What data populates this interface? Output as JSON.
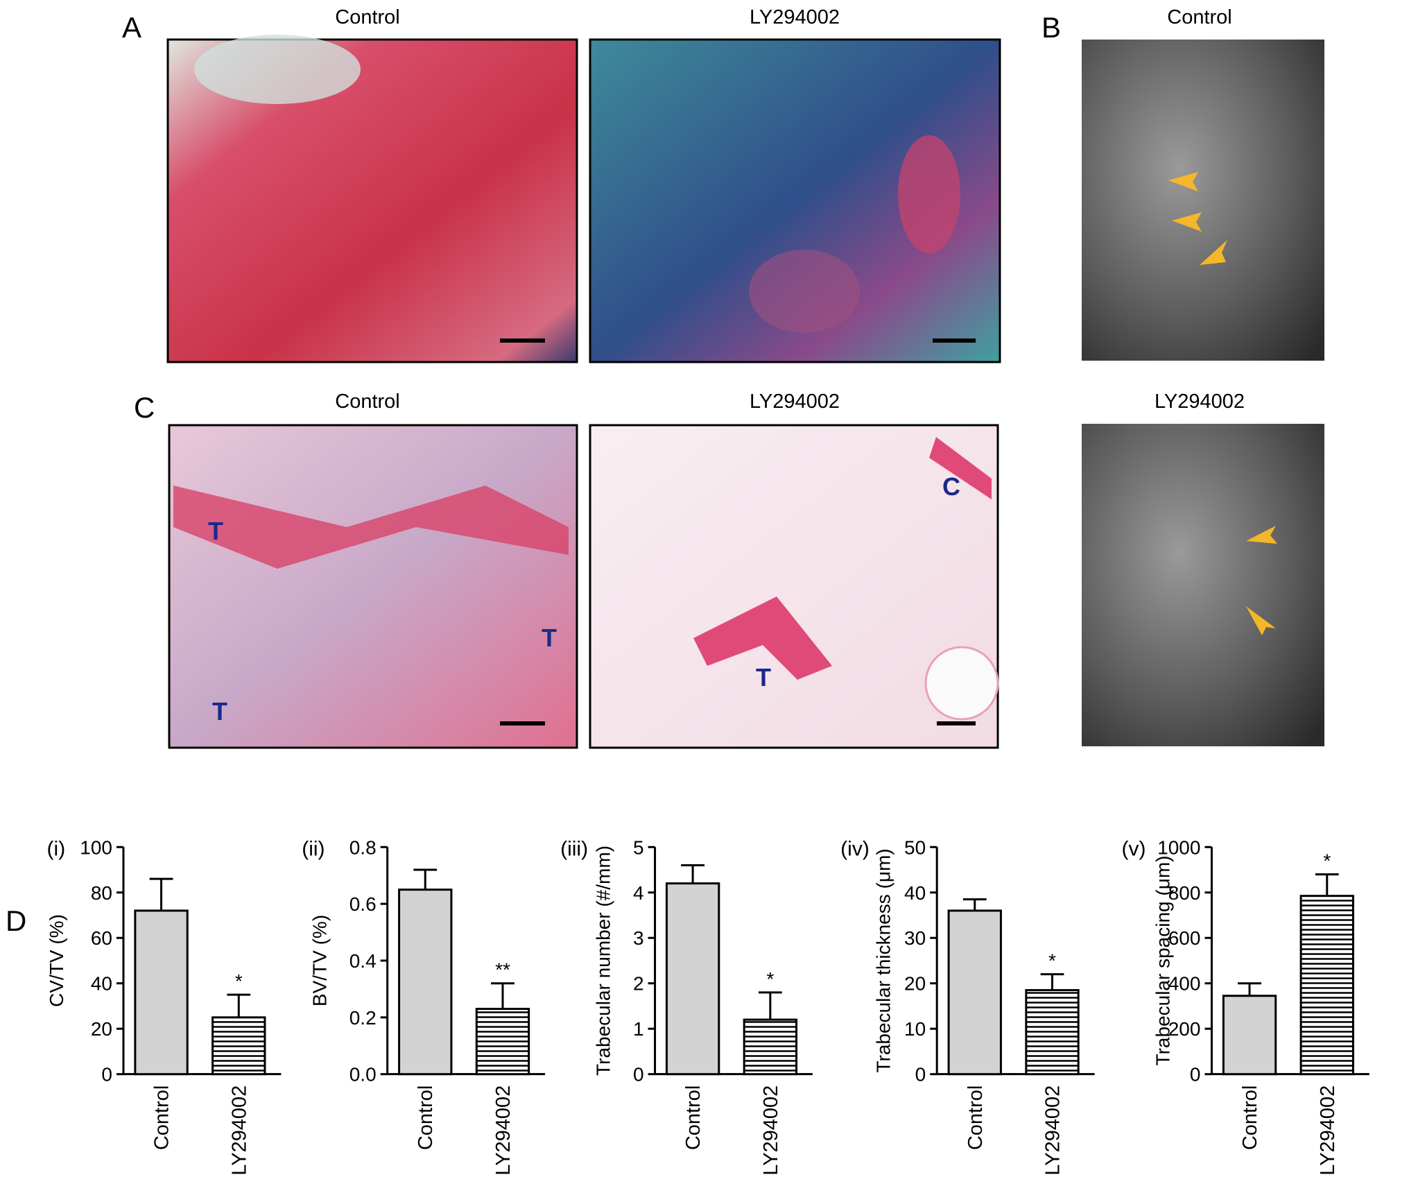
{
  "figure": {
    "A": {
      "label": "A",
      "left_title": "Control",
      "right_title": "LY294002"
    },
    "B": {
      "label": "B",
      "top_title": "Control",
      "bottom_title": "LY294002"
    },
    "C": {
      "label": "C",
      "left_title": "Control",
      "right_title": "LY294002",
      "left_marks": [
        "T",
        "T",
        "T"
      ],
      "right_marks": [
        "C",
        "T"
      ]
    },
    "D": {
      "label": "D"
    }
  },
  "chart_data": [
    {
      "type": "bar",
      "panel_label": "(i)",
      "ylabel": "CV/TV (%)",
      "categories": [
        "Control",
        "LY294002"
      ],
      "values": [
        72,
        25
      ],
      "errors": [
        14,
        10
      ],
      "significance": [
        null,
        "*"
      ],
      "colors": [
        "#d3d3d3",
        "#ffffff"
      ],
      "hatch": [
        false,
        true
      ],
      "ylim": [
        0,
        100
      ],
      "yticks": [
        0,
        20,
        40,
        60,
        80,
        100
      ]
    },
    {
      "type": "bar",
      "panel_label": "(ii)",
      "ylabel": "BV/TV (%)",
      "categories": [
        "Control",
        "LY294002"
      ],
      "values": [
        0.65,
        0.23
      ],
      "errors": [
        0.07,
        0.09
      ],
      "significance": [
        null,
        "**"
      ],
      "colors": [
        "#d3d3d3",
        "#ffffff"
      ],
      "hatch": [
        false,
        true
      ],
      "ylim": [
        0,
        0.8
      ],
      "yticks": [
        {
          "value": 0,
          "label": "0.0"
        },
        0.2,
        0.4,
        0.6,
        0.8
      ]
    },
    {
      "type": "bar",
      "panel_label": "(iii)",
      "ylabel": "Trabecular number (#/mm)",
      "categories": [
        "Control",
        "LY294002"
      ],
      "values": [
        4.2,
        1.2
      ],
      "errors": [
        0.4,
        0.6
      ],
      "significance": [
        null,
        "*"
      ],
      "colors": [
        "#d3d3d3",
        "#ffffff"
      ],
      "hatch": [
        false,
        true
      ],
      "ylim": [
        0,
        5
      ],
      "yticks": [
        0,
        1,
        2,
        3,
        4,
        5
      ]
    },
    {
      "type": "bar",
      "panel_label": "(iv)",
      "ylabel": "Trabecular thickness (μm)",
      "categories": [
        "Control",
        "LY294002"
      ],
      "values": [
        36,
        18.5
      ],
      "errors": [
        2.5,
        3.5
      ],
      "significance": [
        null,
        "*"
      ],
      "colors": [
        "#d3d3d3",
        "#ffffff"
      ],
      "hatch": [
        false,
        true
      ],
      "ylim": [
        0,
        50
      ],
      "yticks": [
        0,
        10,
        20,
        30,
        40,
        50
      ]
    },
    {
      "type": "bar",
      "panel_label": "(v)",
      "ylabel": "Trabecular spacing (μm)",
      "categories": [
        "Control",
        "LY294002"
      ],
      "values": [
        345,
        785
      ],
      "errors": [
        55,
        95
      ],
      "significance": [
        null,
        "*"
      ],
      "colors": [
        "#d3d3d3",
        "#ffffff"
      ],
      "hatch": [
        false,
        true
      ],
      "ylim": [
        0,
        1000
      ],
      "yticks": [
        0,
        200,
        400,
        600,
        800,
        1000
      ]
    }
  ]
}
